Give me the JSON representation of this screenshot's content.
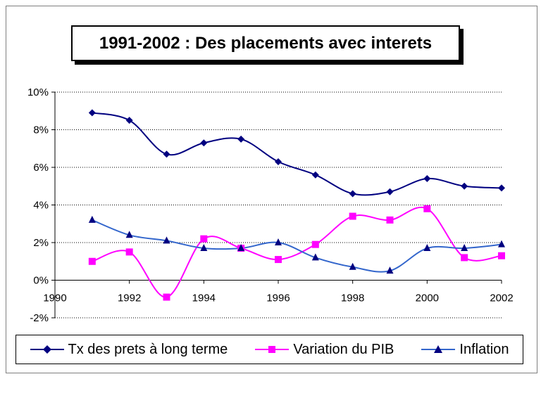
{
  "chart_data": {
    "type": "line",
    "title": "1991-2002 : Des placements avec interets",
    "xlabel": "",
    "ylabel": "",
    "xlim": [
      1990,
      2002
    ],
    "ylim": [
      -2,
      10
    ],
    "x_ticks": [
      "1990",
      "1992",
      "1994",
      "1996",
      "1998",
      "2000",
      "2002"
    ],
    "y_ticks": [
      "-2%",
      "0%",
      "2%",
      "4%",
      "6%",
      "8%",
      "10%"
    ],
    "grid": "horizontal dotted",
    "legend_position": "bottom",
    "x": [
      1991,
      1992,
      1993,
      1994,
      1995,
      1996,
      1997,
      1998,
      1999,
      2000,
      2001,
      2002
    ],
    "series": [
      {
        "name": "Tx des prets à long terme",
        "color": "#000080",
        "marker": "diamond",
        "values": [
          8.9,
          8.5,
          6.7,
          7.3,
          7.5,
          6.3,
          5.6,
          4.6,
          4.7,
          5.4,
          5.0,
          4.9
        ]
      },
      {
        "name": "Variation du PIB",
        "color": "#ff00ff",
        "marker": "square",
        "values": [
          1.0,
          1.5,
          -0.9,
          2.2,
          1.7,
          1.1,
          1.9,
          3.4,
          3.2,
          3.8,
          1.2,
          1.3
        ]
      },
      {
        "name": "Inflation",
        "color": "#000080",
        "line_color": "#3366cc",
        "marker": "triangle",
        "values": [
          3.2,
          2.4,
          2.1,
          1.7,
          1.7,
          2.0,
          1.2,
          0.7,
          0.5,
          1.7,
          1.7,
          1.9
        ]
      }
    ]
  }
}
